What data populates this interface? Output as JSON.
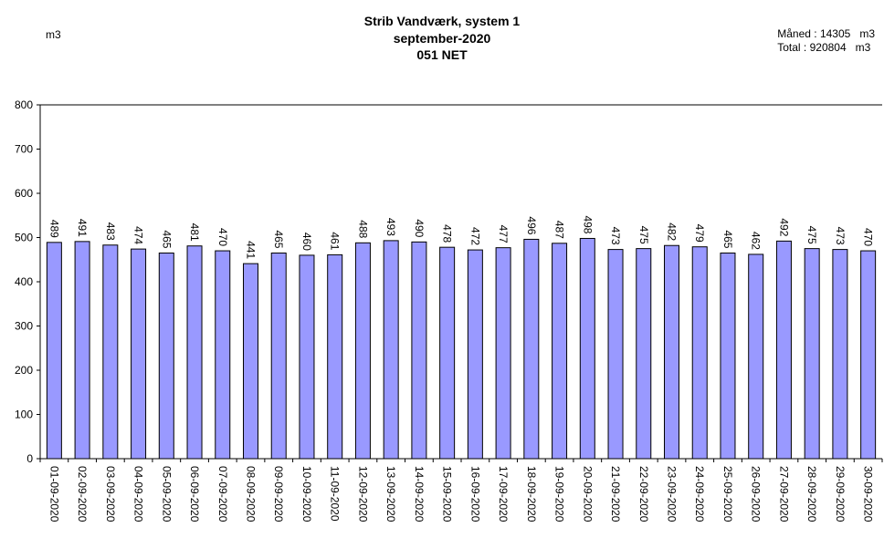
{
  "header": {
    "title_line1": "Strib Vandværk, system 1",
    "title_line2": "september-2020",
    "title_line3": "051 NET",
    "unit": "m3",
    "month_label": "Måned : ",
    "month_value": "14305",
    "month_unit": "m3",
    "total_label": "Total : ",
    "total_value": "920804",
    "total_unit": "m3"
  },
  "colors": {
    "bar_fill": "#9999ff",
    "bar_stroke": "#000000",
    "axis": "#000000"
  },
  "chart_data": {
    "type": "bar",
    "title": "Strib Vandværk, system 1",
    "ylabel": "m3",
    "ylim": [
      0,
      800
    ],
    "yticks": [
      0,
      100,
      200,
      300,
      400,
      500,
      600,
      700,
      800
    ],
    "grid": false,
    "categories": [
      "01-09-2020",
      "02-09-2020",
      "03-09-2020",
      "04-09-2020",
      "05-09-2020",
      "06-09-2020",
      "07-09-2020",
      "08-09-2020",
      "09-09-2020",
      "10-09-2020",
      "11-09-2020",
      "12-09-2020",
      "13-09-2020",
      "14-09-2020",
      "15-09-2020",
      "16-09-2020",
      "17-09-2020",
      "18-09-2020",
      "19-09-2020",
      "20-09-2020",
      "21-09-2020",
      "22-09-2020",
      "23-09-2020",
      "24-09-2020",
      "25-09-2020",
      "26-09-2020",
      "27-09-2020",
      "28-09-2020",
      "29-09-2020",
      "30-09-2020"
    ],
    "values": [
      489,
      491,
      483,
      474,
      465,
      481,
      470,
      441,
      465,
      460,
      461,
      488,
      493,
      490,
      478,
      472,
      477,
      496,
      487,
      498,
      473,
      475,
      482,
      479,
      465,
      462,
      492,
      475,
      473,
      470
    ]
  }
}
